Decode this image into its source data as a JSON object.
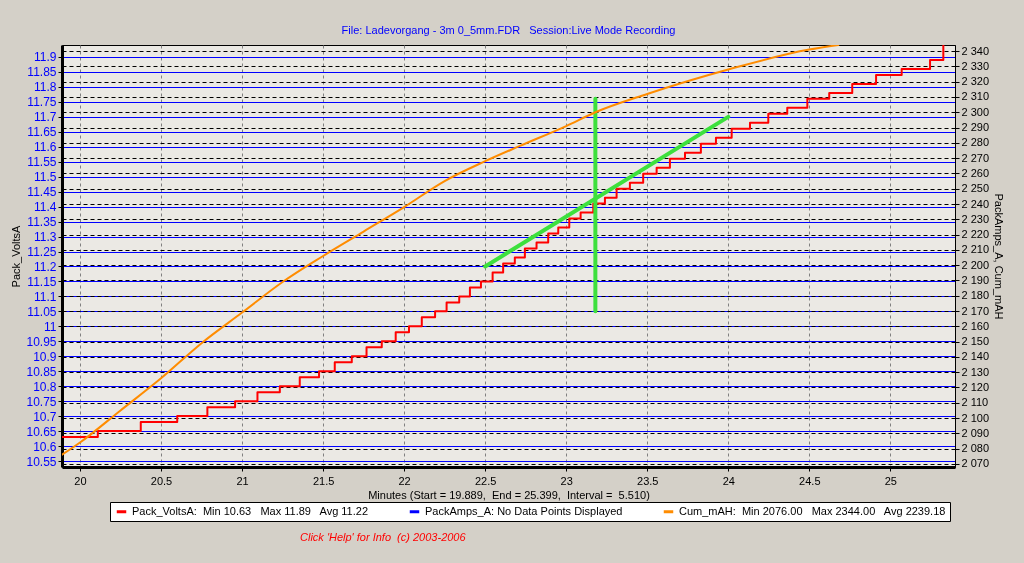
{
  "chart_data": {
    "type": "line",
    "title": "File: Ladevorgang - 3m 0_5mm.FDR   Session:Live Mode Recording",
    "xlabel": "Minutes (Start = 19.889,  End = 25.399,  Interval =  5.510)",
    "ylabel": "Pack_VoltsA",
    "y2label": "PackAmps_A, Cum_mAH",
    "xlim": [
      19.889,
      25.399
    ],
    "xticks": [
      20,
      20.5,
      21,
      21.5,
      22,
      22.5,
      23,
      23.5,
      24,
      24.5,
      25
    ],
    "ylim": [
      10.53,
      11.94
    ],
    "yticks": [
      10.55,
      10.6,
      10.65,
      10.7,
      10.75,
      10.8,
      10.85,
      10.9,
      10.95,
      11,
      11.05,
      11.1,
      11.15,
      11.2,
      11.25,
      11.3,
      11.35,
      11.4,
      11.45,
      11.5,
      11.55,
      11.6,
      11.65,
      11.7,
      11.75,
      11.8,
      11.85,
      11.9
    ],
    "y2lim": [
      2068,
      2344
    ],
    "y2ticks": [
      {
        "value": 2070,
        "label": "2 070"
      },
      {
        "value": 2080,
        "label": "2 080"
      },
      {
        "value": 2090,
        "label": "2 090"
      },
      {
        "value": 2100,
        "label": "2 100"
      },
      {
        "value": 2110,
        "label": "2 110"
      },
      {
        "value": 2120,
        "label": "2 120"
      },
      {
        "value": 2130,
        "label": "2 130"
      },
      {
        "value": 2140,
        "label": "2 140"
      },
      {
        "value": 2150,
        "label": "2 150"
      },
      {
        "value": 2160,
        "label": "2 160"
      },
      {
        "value": 2170,
        "label": "2 170"
      },
      {
        "value": 2180,
        "label": "2 180"
      },
      {
        "value": 2190,
        "label": "2 190"
      },
      {
        "value": 2200,
        "label": "2 200"
      },
      {
        "value": 2210,
        "label": "2 210"
      },
      {
        "value": 2220,
        "label": "2 220"
      },
      {
        "value": 2230,
        "label": "2 230"
      },
      {
        "value": 2240,
        "label": "2 240"
      },
      {
        "value": 2250,
        "label": "2 250"
      },
      {
        "value": 2260,
        "label": "2 260"
      },
      {
        "value": 2270,
        "label": "2 270"
      },
      {
        "value": 2280,
        "label": "2 280"
      },
      {
        "value": 2290,
        "label": "2 290"
      },
      {
        "value": 2300,
        "label": "2 300"
      },
      {
        "value": 2310,
        "label": "2 310"
      },
      {
        "value": 2320,
        "label": "2 320"
      },
      {
        "value": 2330,
        "label": "2 330"
      },
      {
        "value": 2340,
        "label": "2 340"
      }
    ],
    "grid": true,
    "legend": "bottom",
    "series": [
      {
        "name": "Pack_VoltsA:  Min 10.63   Max 11.89   Avg 11.22",
        "type": "step",
        "color": "#ff0000",
        "x": [
          19.889,
          20.11,
          20.375,
          20.6,
          20.786,
          20.957,
          21.095,
          21.233,
          21.356,
          21.475,
          21.572,
          21.677,
          21.768,
          21.862,
          21.948,
          22.03,
          22.109,
          22.191,
          22.262,
          22.34,
          22.406,
          22.474,
          22.546,
          22.611,
          22.683,
          22.745,
          22.817,
          22.889,
          22.951,
          23.019,
          23.089,
          23.167,
          23.239,
          23.311,
          23.393,
          23.475,
          23.558,
          23.64,
          23.733,
          23.831,
          23.924,
          24.021,
          24.134,
          24.247,
          24.364,
          24.488,
          24.623,
          24.765,
          24.912,
          25.07,
          25.245,
          25.327
        ],
        "values": [
          10.63,
          10.65,
          10.68,
          10.7,
          10.73,
          10.75,
          10.78,
          10.8,
          10.83,
          10.85,
          10.88,
          10.9,
          10.93,
          10.95,
          10.98,
          11.0,
          11.03,
          11.05,
          11.08,
          11.1,
          11.13,
          11.15,
          11.18,
          11.21,
          11.23,
          11.26,
          11.28,
          11.31,
          11.33,
          11.36,
          11.38,
          11.41,
          11.43,
          11.46,
          11.48,
          11.51,
          11.53,
          11.56,
          11.58,
          11.61,
          11.63,
          11.66,
          11.68,
          11.71,
          11.73,
          11.76,
          11.78,
          11.81,
          11.84,
          11.86,
          11.89,
          11.94
        ]
      },
      {
        "name": "PackAmps_A: No Data Points Displayed",
        "color": "#0000ff",
        "axis": "y2"
      },
      {
        "name": "Cum_mAH:  Min 2076.00   Max 2344.00   Avg 2239.18",
        "color": "#ff8c00",
        "axis": "y2",
        "x": [
          19.889,
          20,
          20.25,
          20.5,
          20.75,
          21,
          21.25,
          21.5,
          21.75,
          22,
          22.25,
          22.5,
          22.714,
          23,
          23.18,
          23.5,
          24,
          24.5,
          24.68
        ],
        "values": [
          2076,
          2084,
          2105,
          2126,
          2149,
          2169,
          2189,
          2206,
          2222,
          2238,
          2255,
          2268,
          2278,
          2291,
          2300,
          2312,
          2328,
          2341,
          2344
        ]
      },
      {
        "color": "#3de03d",
        "x": [
          22.5,
          24.0
        ],
        "values": [
          11.2,
          11.7
        ]
      },
      {
        "color": "#3de03d",
        "x": [
          23.18,
          23.18
        ],
        "values": [
          11.05,
          11.76
        ]
      }
    ],
    "annotations": [
      "Click 'Help' for Info  (c) 2003-2006"
    ]
  }
}
